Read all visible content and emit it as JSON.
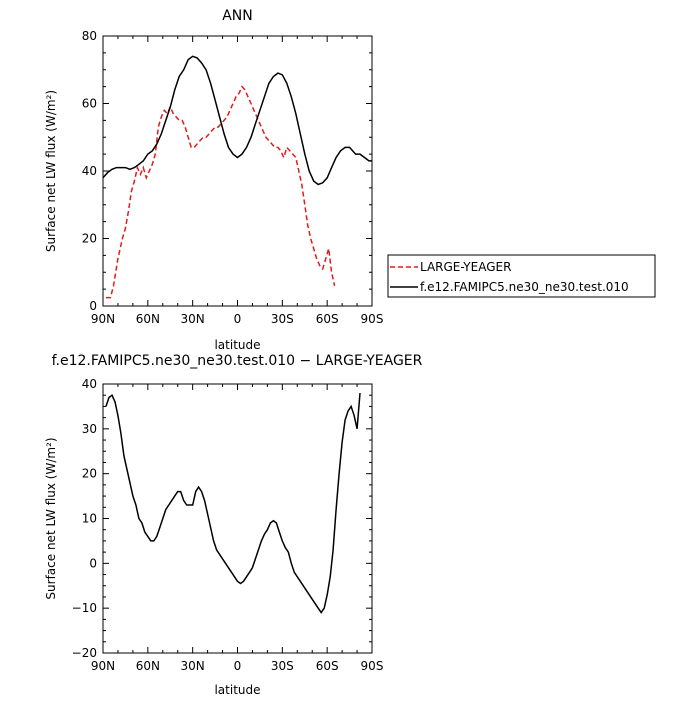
{
  "chart_data": [
    {
      "type": "line",
      "title": "ANN",
      "xlabel": "latitude",
      "ylabel": "Surface net LW flux (W/m²)",
      "xlim": [
        90,
        -90
      ],
      "ylim": [
        0,
        80
      ],
      "x_ticks": [
        90,
        60,
        30,
        0,
        -30,
        -60,
        -90
      ],
      "x_tick_labels": [
        "90N",
        "60N",
        "30N",
        "0",
        "30S",
        "60S",
        "90S"
      ],
      "y_ticks": [
        0,
        20,
        40,
        60,
        80
      ],
      "y_tick_labels": [
        "0",
        "20",
        "40",
        "60",
        "80"
      ],
      "legend_position": "right-outside",
      "series": [
        {
          "name": "LARGE-YEAGER",
          "color": "#e41a1c",
          "dash": "dashed",
          "points": [
            [
              88,
              2.5
            ],
            [
              85,
              2.5
            ],
            [
              83,
              6
            ],
            [
              80,
              14
            ],
            [
              77,
              20
            ],
            [
              75,
              23
            ],
            [
              73,
              28
            ],
            [
              71,
              34
            ],
            [
              69,
              37
            ],
            [
              67,
              41
            ],
            [
              65,
              39
            ],
            [
              63,
              41
            ],
            [
              61,
              38
            ],
            [
              59,
              40
            ],
            [
              57,
              42
            ],
            [
              55,
              45
            ],
            [
              53,
              53
            ],
            [
              51,
              56
            ],
            [
              49,
              58
            ],
            [
              47,
              57
            ],
            [
              45,
              59
            ],
            [
              43,
              57
            ],
            [
              41,
              56
            ],
            [
              39,
              55
            ],
            [
              37,
              55
            ],
            [
              35,
              53
            ],
            [
              33,
              50
            ],
            [
              31,
              47
            ],
            [
              29,
              47
            ],
            [
              27,
              48
            ],
            [
              25,
              49
            ],
            [
              23,
              50
            ],
            [
              21,
              50
            ],
            [
              19,
              51
            ],
            [
              17,
              52
            ],
            [
              15,
              53
            ],
            [
              13,
              53
            ],
            [
              11,
              54
            ],
            [
              9,
              55
            ],
            [
              7,
              56
            ],
            [
              5,
              58
            ],
            [
              3,
              60
            ],
            [
              1,
              62
            ],
            [
              -1,
              63
            ],
            [
              -3,
              65
            ],
            [
              -5,
              64
            ],
            [
              -7,
              62
            ],
            [
              -9,
              60
            ],
            [
              -11,
              58
            ],
            [
              -13,
              56
            ],
            [
              -15,
              54
            ],
            [
              -17,
              52
            ],
            [
              -19,
              50
            ],
            [
              -21,
              49
            ],
            [
              -23,
              48
            ],
            [
              -25,
              47
            ],
            [
              -27,
              47
            ],
            [
              -29,
              46
            ],
            [
              -31,
              44
            ],
            [
              -33,
              47
            ],
            [
              -35,
              46
            ],
            [
              -37,
              45
            ],
            [
              -39,
              44
            ],
            [
              -41,
              40
            ],
            [
              -43,
              36
            ],
            [
              -45,
              30
            ],
            [
              -47,
              24
            ],
            [
              -49,
              20
            ],
            [
              -51,
              17
            ],
            [
              -53,
              14
            ],
            [
              -55,
              12
            ],
            [
              -57,
              11
            ],
            [
              -59,
              14
            ],
            [
              -61,
              17
            ],
            [
              -63,
              10
            ],
            [
              -65,
              6
            ]
          ]
        },
        {
          "name": "f.e12.FAMIPC5.ne30_ne30.test.010",
          "color": "#000000",
          "dash": "solid",
          "points": [
            [
              90,
              38
            ],
            [
              87,
              39.5
            ],
            [
              84,
              40.5
            ],
            [
              81,
              41
            ],
            [
              78,
              41
            ],
            [
              75,
              41
            ],
            [
              72,
              40.5
            ],
            [
              69,
              41
            ],
            [
              66,
              42
            ],
            [
              63,
              43
            ],
            [
              60,
              45
            ],
            [
              57,
              46
            ],
            [
              54,
              48
            ],
            [
              51,
              51
            ],
            [
              48,
              55
            ],
            [
              45,
              59
            ],
            [
              42,
              64
            ],
            [
              39,
              68
            ],
            [
              36,
              70
            ],
            [
              33,
              73
            ],
            [
              30,
              74
            ],
            [
              27,
              73.5
            ],
            [
              24,
              72
            ],
            [
              21,
              70
            ],
            [
              18,
              66
            ],
            [
              15,
              61
            ],
            [
              12,
              56
            ],
            [
              9,
              51
            ],
            [
              6,
              47
            ],
            [
              3,
              45
            ],
            [
              0,
              44
            ],
            [
              -3,
              45
            ],
            [
              -6,
              47
            ],
            [
              -9,
              50
            ],
            [
              -12,
              54
            ],
            [
              -15,
              58
            ],
            [
              -18,
              62
            ],
            [
              -21,
              66
            ],
            [
              -24,
              68
            ],
            [
              -27,
              69
            ],
            [
              -30,
              68.5
            ],
            [
              -33,
              66
            ],
            [
              -36,
              62
            ],
            [
              -39,
              57
            ],
            [
              -42,
              51
            ],
            [
              -45,
              45
            ],
            [
              -48,
              40
            ],
            [
              -51,
              37
            ],
            [
              -54,
              36
            ],
            [
              -57,
              36.5
            ],
            [
              -60,
              38
            ],
            [
              -63,
              41
            ],
            [
              -66,
              44
            ],
            [
              -69,
              46
            ],
            [
              -72,
              47
            ],
            [
              -75,
              47
            ],
            [
              -77,
              46
            ],
            [
              -79,
              45
            ],
            [
              -82,
              45
            ],
            [
              -85,
              44
            ],
            [
              -88,
              43
            ],
            [
              -90,
              43
            ]
          ]
        }
      ]
    },
    {
      "type": "line",
      "title": "f.e12.FAMIPC5.ne30_ne30.test.010 − LARGE-YEAGER",
      "xlabel": "latitude",
      "ylabel": "Surface net LW flux (W/m²)",
      "xlim": [
        90,
        -90
      ],
      "ylim": [
        -20,
        40
      ],
      "x_ticks": [
        90,
        60,
        30,
        0,
        -30,
        -60,
        -90
      ],
      "x_tick_labels": [
        "90N",
        "60N",
        "30N",
        "0",
        "30S",
        "60S",
        "90S"
      ],
      "y_ticks": [
        -20,
        -10,
        0,
        10,
        20,
        30,
        40
      ],
      "y_tick_labels": [
        "−20",
        "−10",
        "0",
        "10",
        "20",
        "30",
        "40"
      ],
      "series": [
        {
          "color": "#000000",
          "dash": "solid",
          "points": [
            [
              88,
              35
            ],
            [
              86,
              37
            ],
            [
              84,
              37.5
            ],
            [
              82,
              36
            ],
            [
              80,
              33
            ],
            [
              78,
              29
            ],
            [
              76,
              24
            ],
            [
              74,
              21
            ],
            [
              72,
              18
            ],
            [
              70,
              15
            ],
            [
              68,
              13
            ],
            [
              66,
              10
            ],
            [
              64,
              9
            ],
            [
              62,
              7
            ],
            [
              60,
              6
            ],
            [
              58,
              5
            ],
            [
              56,
              5
            ],
            [
              54,
              6
            ],
            [
              52,
              8
            ],
            [
              50,
              10
            ],
            [
              48,
              12
            ],
            [
              46,
              13
            ],
            [
              44,
              14
            ],
            [
              42,
              15
            ],
            [
              40,
              16
            ],
            [
              38,
              16
            ],
            [
              36,
              14
            ],
            [
              34,
              13
            ],
            [
              32,
              13
            ],
            [
              30,
              13
            ],
            [
              28,
              16
            ],
            [
              26,
              17
            ],
            [
              24,
              16
            ],
            [
              22,
              14
            ],
            [
              20,
              11
            ],
            [
              18,
              8
            ],
            [
              16,
              5
            ],
            [
              14,
              3
            ],
            [
              12,
              2
            ],
            [
              10,
              1
            ],
            [
              8,
              0
            ],
            [
              6,
              -1
            ],
            [
              4,
              -2
            ],
            [
              2,
              -3
            ],
            [
              0,
              -4
            ],
            [
              -2,
              -4.5
            ],
            [
              -4,
              -4
            ],
            [
              -6,
              -3
            ],
            [
              -8,
              -2
            ],
            [
              -10,
              -1
            ],
            [
              -12,
              1
            ],
            [
              -14,
              3
            ],
            [
              -16,
              5
            ],
            [
              -18,
              6.5
            ],
            [
              -20,
              7.5
            ],
            [
              -22,
              9
            ],
            [
              -24,
              9.5
            ],
            [
              -26,
              9
            ],
            [
              -28,
              7
            ],
            [
              -30,
              5
            ],
            [
              -32,
              3.5
            ],
            [
              -34,
              2.5
            ],
            [
              -36,
              0
            ],
            [
              -38,
              -2
            ],
            [
              -40,
              -3
            ],
            [
              -42,
              -4
            ],
            [
              -44,
              -5
            ],
            [
              -46,
              -6
            ],
            [
              -48,
              -7
            ],
            [
              -50,
              -8
            ],
            [
              -52,
              -9
            ],
            [
              -54,
              -10
            ],
            [
              -56,
              -11
            ],
            [
              -58,
              -10
            ],
            [
              -60,
              -7
            ],
            [
              -62,
              -3
            ],
            [
              -64,
              3
            ],
            [
              -66,
              12
            ],
            [
              -68,
              20
            ],
            [
              -70,
              27
            ],
            [
              -72,
              32
            ],
            [
              -74,
              34
            ],
            [
              -76,
              35
            ],
            [
              -78,
              33
            ],
            [
              -80,
              30
            ],
            [
              -82,
              38
            ]
          ]
        }
      ]
    }
  ]
}
